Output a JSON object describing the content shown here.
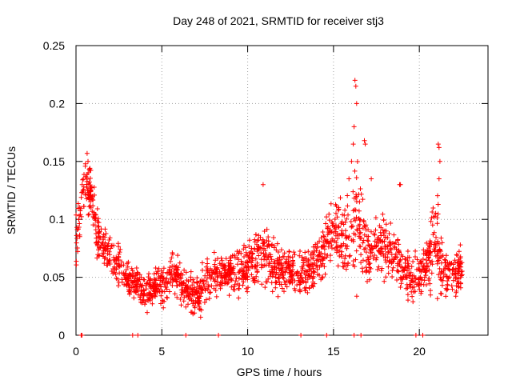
{
  "chart_data": {
    "type": "scatter",
    "title": "Day 248 of 2021, SRMTID for receiver stj3",
    "xlabel": "GPS time / hours",
    "ylabel": "SRMTID / TECUs",
    "xlim": [
      0,
      24
    ],
    "ylim": [
      0,
      0.25
    ],
    "x_ticks": [
      0,
      5,
      10,
      15,
      20
    ],
    "x_tick_labels": [
      "0",
      "5",
      "10",
      "15",
      "20"
    ],
    "y_ticks": [
      0,
      0.05,
      0.1,
      0.15,
      0.2,
      0.25
    ],
    "y_tick_labels": [
      "0",
      "0.05",
      "0.1",
      "0.15",
      "0.2",
      "0.25"
    ],
    "grid": true,
    "marker": "+",
    "marker_color": "#ff0000",
    "envelope_hours": [
      0,
      0.3,
      0.6,
      0.9,
      1.2,
      1.6,
      2.0,
      2.5,
      3.0,
      3.5,
      4.0,
      4.5,
      5.0,
      5.5,
      6.0,
      6.5,
      7.0,
      7.5,
      8.0,
      8.5,
      9.0,
      9.5,
      10.0,
      10.5,
      11.0,
      11.5,
      12.0,
      12.5,
      13.0,
      13.5,
      14.0,
      14.5,
      15.0,
      15.5,
      16.0,
      16.3,
      16.5,
      16.8,
      17.0,
      17.5,
      18.0,
      18.5,
      19.0,
      19.5,
      20.0,
      20.5,
      21.0,
      21.3,
      21.6,
      22.0,
      22.5
    ],
    "envelope_mean": [
      0.075,
      0.12,
      0.135,
      0.12,
      0.09,
      0.075,
      0.07,
      0.06,
      0.05,
      0.045,
      0.035,
      0.04,
      0.045,
      0.05,
      0.05,
      0.04,
      0.035,
      0.045,
      0.05,
      0.05,
      0.055,
      0.055,
      0.06,
      0.065,
      0.07,
      0.06,
      0.055,
      0.055,
      0.05,
      0.055,
      0.06,
      0.075,
      0.085,
      0.09,
      0.085,
      0.11,
      0.095,
      0.08,
      0.07,
      0.075,
      0.075,
      0.07,
      0.06,
      0.05,
      0.05,
      0.065,
      0.085,
      0.06,
      0.05,
      0.055,
      0.06
    ],
    "envelope_spread": [
      0.025,
      0.02,
      0.015,
      0.02,
      0.018,
      0.015,
      0.015,
      0.015,
      0.012,
      0.012,
      0.012,
      0.012,
      0.015,
      0.015,
      0.015,
      0.015,
      0.015,
      0.015,
      0.015,
      0.015,
      0.015,
      0.015,
      0.018,
      0.02,
      0.02,
      0.018,
      0.015,
      0.015,
      0.015,
      0.015,
      0.018,
      0.02,
      0.025,
      0.03,
      0.03,
      0.05,
      0.03,
      0.025,
      0.02,
      0.02,
      0.02,
      0.02,
      0.015,
      0.015,
      0.015,
      0.02,
      0.035,
      0.02,
      0.018,
      0.015,
      0.015
    ],
    "range_hours": [
      0,
      22.5
    ],
    "point_count": 1900,
    "extreme_points": [
      [
        16.25,
        0.22
      ],
      [
        16.3,
        0.215
      ],
      [
        16.35,
        0.2
      ],
      [
        16.2,
        0.18
      ],
      [
        16.15,
        0.165
      ],
      [
        16.8,
        0.168
      ],
      [
        16.85,
        0.165
      ],
      [
        21.1,
        0.165
      ],
      [
        21.15,
        0.162
      ],
      [
        21.2,
        0.15
      ],
      [
        21.15,
        0.135
      ],
      [
        0.65,
        0.157
      ],
      [
        0.7,
        0.15
      ],
      [
        0.55,
        0.148
      ],
      [
        10.9,
        0.13
      ],
      [
        18.85,
        0.13
      ],
      [
        18.9,
        0.13
      ],
      [
        15.9,
        0.135
      ],
      [
        16.05,
        0.15
      ],
      [
        17.2,
        0.135
      ]
    ],
    "zero_points": [
      0.3,
      0.35,
      3.3,
      3.6,
      6.4,
      8.3,
      13.1,
      14.6,
      16.2,
      16.6,
      19.8,
      20.2
    ]
  }
}
